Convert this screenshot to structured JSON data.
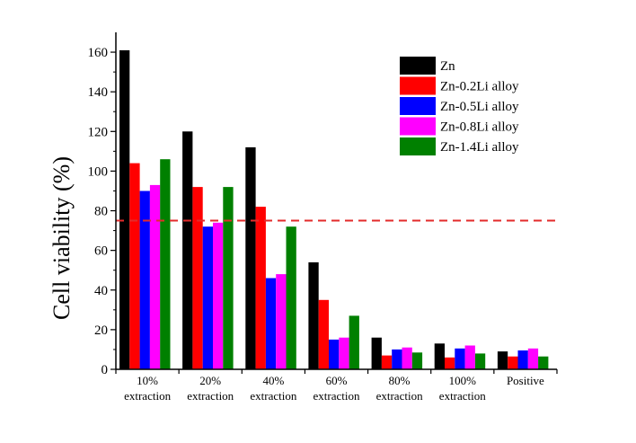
{
  "chart_data": {
    "type": "bar",
    "ylabel": "Cell viability (%)",
    "xlabel": "",
    "ylim": [
      0,
      170
    ],
    "yticks": [
      0,
      20,
      40,
      60,
      80,
      100,
      120,
      140,
      160
    ],
    "reference_line": {
      "value": 75,
      "color": "#e32b2b",
      "style": "dashed"
    },
    "legend_position": "top-right",
    "categories": [
      [
        "10%",
        "extraction"
      ],
      [
        "20%",
        "extraction"
      ],
      [
        "40%",
        "extraction"
      ],
      [
        "60%",
        "extraction"
      ],
      [
        "80%",
        "extraction"
      ],
      [
        "100%",
        "extraction"
      ],
      [
        "Positive"
      ]
    ],
    "series": [
      {
        "name": "Zn",
        "color": "#000000",
        "values": [
          161,
          120,
          112,
          54,
          16,
          13,
          9
        ]
      },
      {
        "name": "Zn-0.2Li alloy",
        "color": "#ff0000",
        "values": [
          104,
          92,
          82,
          35,
          7,
          6,
          6.5
        ]
      },
      {
        "name": "Zn-0.5Li alloy",
        "color": "#0000ff",
        "values": [
          90,
          72,
          46,
          15,
          10,
          10.5,
          9.5
        ]
      },
      {
        "name": "Zn-0.8Li alloy",
        "color": "#ff00ff",
        "values": [
          93,
          74,
          48,
          16,
          11,
          12,
          10.5
        ]
      },
      {
        "name": "Zn-1.4Li alloy",
        "color": "#008000",
        "values": [
          106,
          92,
          72,
          27,
          8.5,
          8,
          6.5
        ]
      }
    ]
  }
}
